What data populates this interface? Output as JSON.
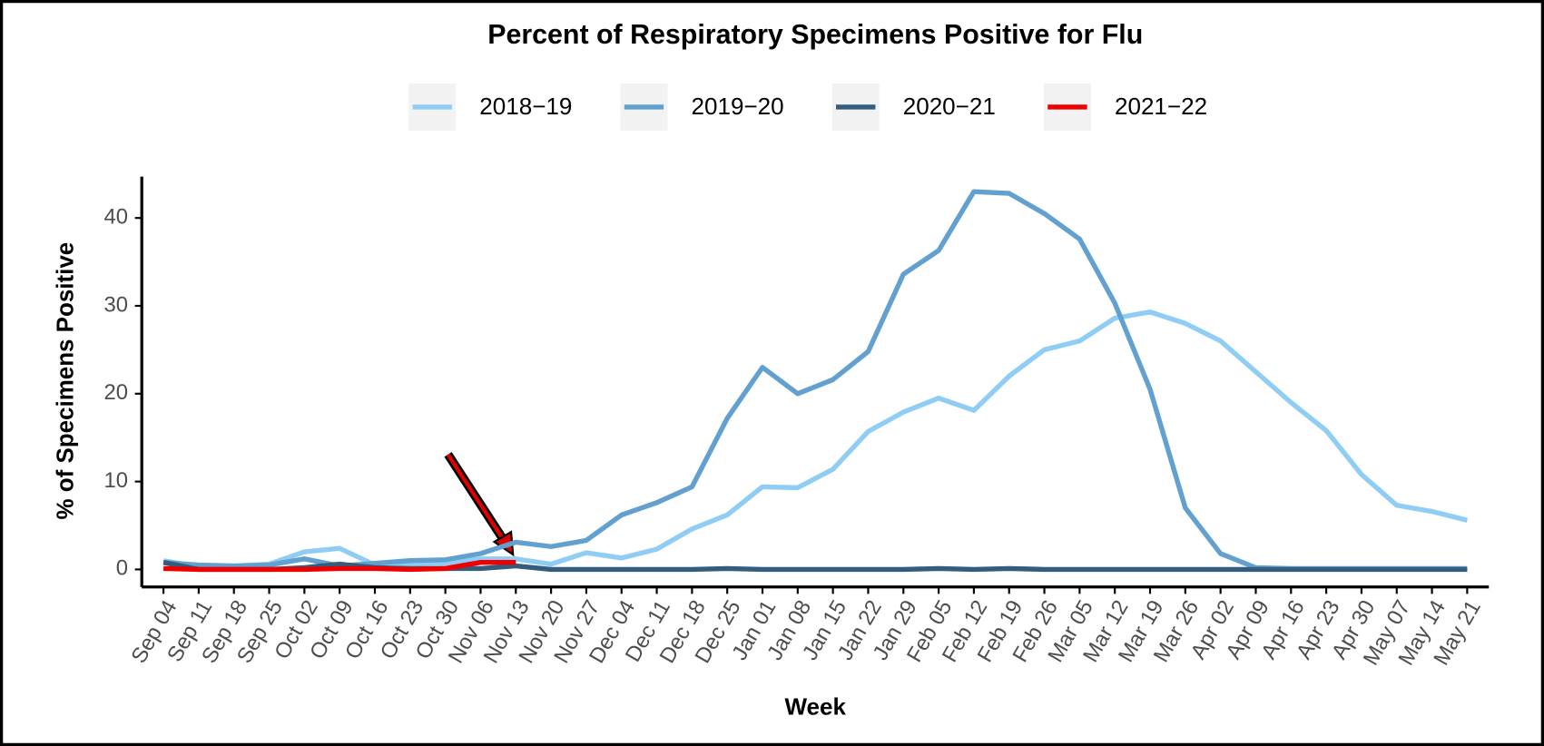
{
  "chart_data": {
    "type": "line",
    "title": "Percent of Respiratory Specimens Positive for Flu",
    "x_label": "Week",
    "y_label": "% of Specimens Positive",
    "categories": [
      "Sep 04",
      "Sep 11",
      "Sep 18",
      "Sep 25",
      "Oct 02",
      "Oct 09",
      "Oct 16",
      "Oct 23",
      "Oct 30",
      "Nov 06",
      "Nov 13",
      "Nov 20",
      "Nov 27",
      "Dec 04",
      "Dec 11",
      "Dec 18",
      "Dec 25",
      "Jan 01",
      "Jan 08",
      "Jan 15",
      "Jan 22",
      "Jan 29",
      "Feb 05",
      "Feb 12",
      "Feb 19",
      "Feb 26",
      "Mar 05",
      "Mar 12",
      "Mar 19",
      "Mar 26",
      "Apr 02",
      "Apr 09",
      "Apr 16",
      "Apr 23",
      "Apr 30",
      "May 07",
      "May 14",
      "May 21"
    ],
    "series": [
      {
        "name": "2018−19",
        "color": "#90cdf4",
        "values": [
          1.0,
          0.3,
          0.4,
          0.6,
          2.0,
          2.4,
          0.5,
          0.6,
          0.7,
          1.2,
          1.2,
          0.6,
          1.9,
          1.3,
          2.3,
          4.6,
          6.2,
          9.4,
          9.3,
          11.4,
          15.7,
          17.9,
          19.5,
          18.1,
          22.0,
          25.0,
          26.0,
          28.6,
          29.3,
          28.0,
          26.0,
          22.5,
          19.0,
          15.8,
          10.8,
          7.3,
          6.6,
          5.6
        ]
      },
      {
        "name": "2019−20",
        "color": "#62a0cf",
        "values": [
          0.8,
          0.5,
          0.4,
          0.5,
          1.2,
          0.4,
          0.7,
          1.0,
          1.1,
          1.8,
          3.1,
          2.6,
          3.3,
          6.2,
          7.6,
          9.4,
          17.2,
          23.0,
          20.0,
          21.6,
          24.8,
          33.6,
          36.3,
          43.0,
          42.8,
          40.5,
          37.6,
          30.3,
          20.5,
          7.0,
          1.8,
          0.2,
          0.1,
          0.1,
          0.1,
          0.1,
          0.1,
          0.1
        ]
      },
      {
        "name": "2020−21",
        "color": "#335c7d",
        "values": [
          0.8,
          0.0,
          0.0,
          0.0,
          0.2,
          0.6,
          0.2,
          0.1,
          0.1,
          0.1,
          0.4,
          0.0,
          0.0,
          0.0,
          0.0,
          0.0,
          0.1,
          0.0,
          0.0,
          0.0,
          0.0,
          0.0,
          0.1,
          0.0,
          0.1,
          0.0,
          0.0,
          0.0,
          0.0,
          0.0,
          0.0,
          0.0,
          0.0,
          0.0,
          0.0,
          0.0,
          0.0,
          0.0
        ]
      },
      {
        "name": "2021−22",
        "color": "#ee0000",
        "values": [
          0.1,
          0.0,
          0.0,
          0.0,
          0.0,
          0.1,
          0.1,
          0.0,
          0.1,
          0.8,
          0.8,
          null,
          null,
          null,
          null,
          null,
          null,
          null,
          null,
          null,
          null,
          null,
          null,
          null,
          null,
          null,
          null,
          null,
          null,
          null,
          null,
          null,
          null,
          null,
          null,
          null,
          null,
          null
        ]
      }
    ],
    "ylim": [
      -2,
      44.7
    ],
    "yticks": [
      0,
      10,
      20,
      30,
      40
    ]
  }
}
